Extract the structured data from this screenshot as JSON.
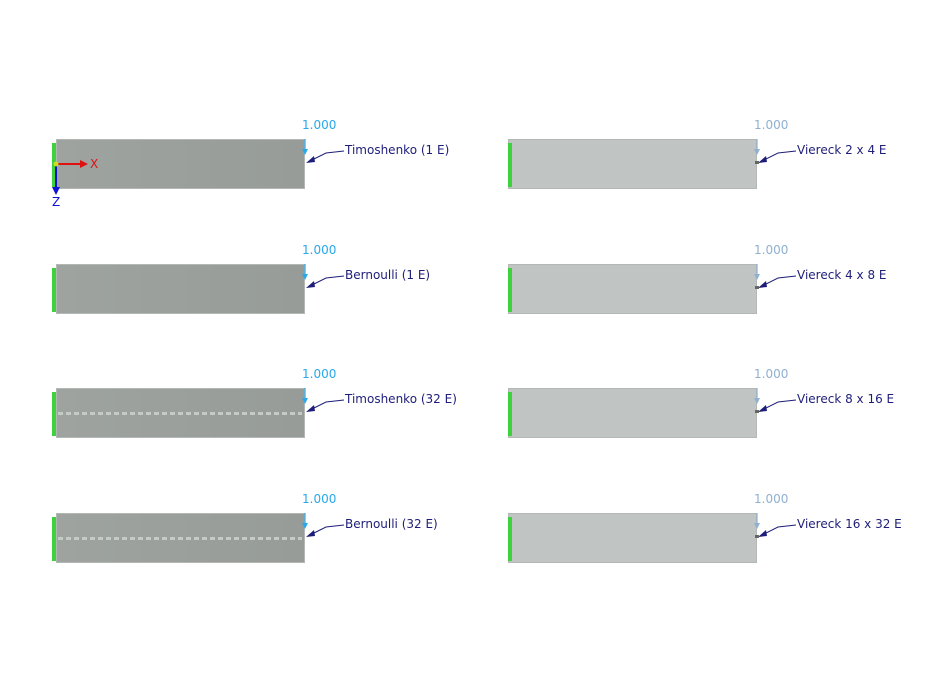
{
  "colors": {
    "load_active": "#29a8ea",
    "load_inactive": "#8fb0d0",
    "label": "#1e1e7a",
    "support": "#3ed13e",
    "beam_member": "#9ba09c",
    "beam_surface": "#c0c4c2",
    "axis_x": "#e01010",
    "axis_z": "#1010d0"
  },
  "axes": {
    "x_label": "X",
    "z_label": "Z"
  },
  "models": [
    {
      "load": "1.000",
      "label": "Timoshenko (1 E)",
      "type": "member",
      "mesh": false,
      "active": true
    },
    {
      "load": "1.000",
      "label": "Viereck 2 x 4 E",
      "type": "surface",
      "mesh": false,
      "active": false
    },
    {
      "load": "1.000",
      "label": "Bernoulli (1 E)",
      "type": "member",
      "mesh": false,
      "active": true
    },
    {
      "load": "1.000",
      "label": "Viereck 4 x 8 E",
      "type": "surface",
      "mesh": false,
      "active": false
    },
    {
      "load": "1.000",
      "label": "Timoshenko (32 E)",
      "type": "member",
      "mesh": true,
      "active": true
    },
    {
      "load": "1.000",
      "label": "Viereck 8 x 16 E",
      "type": "surface",
      "mesh": false,
      "active": false
    },
    {
      "load": "1.000",
      "label": "Bernoulli (32 E)",
      "type": "member",
      "mesh": true,
      "active": true
    },
    {
      "load": "1.000",
      "label": "Viereck 16 x 32 E",
      "type": "surface",
      "mesh": false,
      "active": false
    }
  ]
}
